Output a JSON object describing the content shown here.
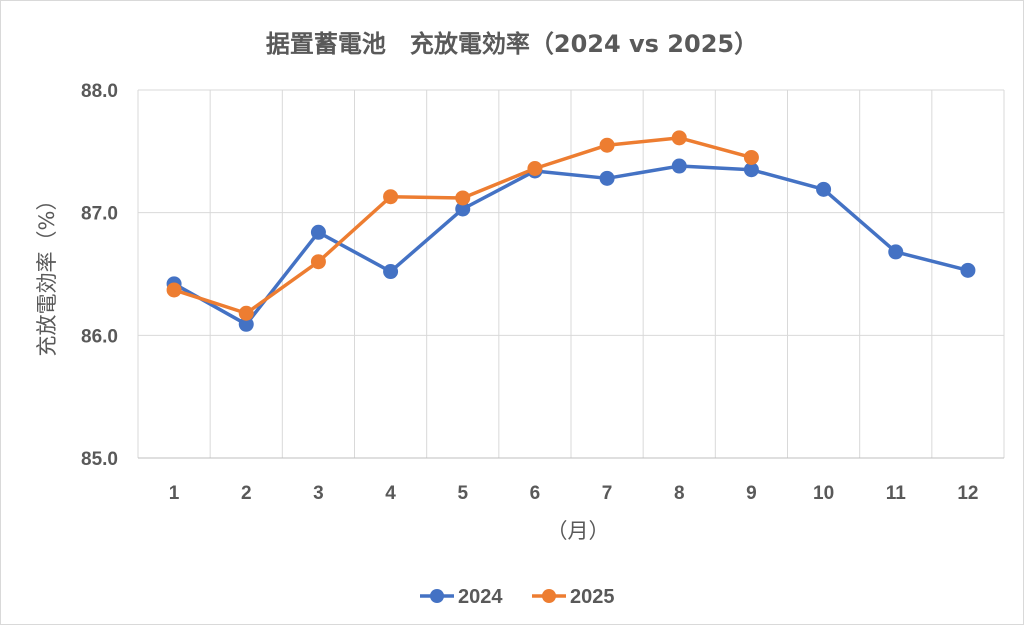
{
  "chart_data": {
    "type": "line",
    "title": "据置蓄電池　充放電効率（2024 vs 2025）",
    "xlabel": "（月）",
    "ylabel": "充放電効率（%）",
    "categories": [
      "1",
      "2",
      "3",
      "4",
      "5",
      "6",
      "7",
      "8",
      "9",
      "10",
      "11",
      "12"
    ],
    "ylim": [
      85.0,
      88.0
    ],
    "yticks": [
      "85.0",
      "86.0",
      "87.0",
      "88.0"
    ],
    "grid": true,
    "legend_position": "bottom",
    "series": [
      {
        "name": "2024",
        "color": "#4472C4",
        "values": [
          86.42,
          86.09,
          86.84,
          86.52,
          87.03,
          87.34,
          87.28,
          87.38,
          87.35,
          87.19,
          86.68,
          86.53
        ]
      },
      {
        "name": "2025",
        "color": "#ED7D31",
        "values": [
          86.37,
          86.18,
          86.6,
          87.13,
          87.12,
          87.36,
          87.55,
          87.61,
          87.45,
          null,
          null,
          null
        ]
      }
    ]
  }
}
